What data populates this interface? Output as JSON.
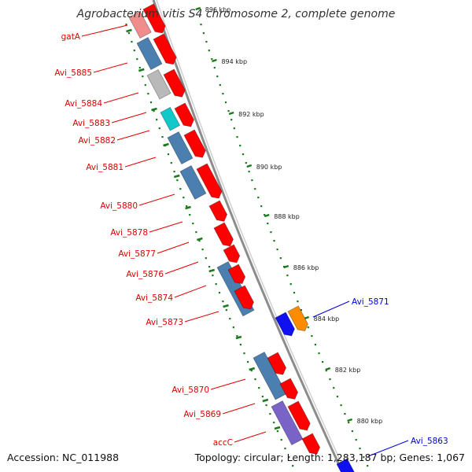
{
  "title": "Agrobacterium vitis S4 chromosome 2, complete genome",
  "accession": "Accession: NC_011988",
  "summary": "Topology: circular; Length: 1,283,187 bp; Genes: 1,067",
  "colors": {
    "forward_strand": "#ff0000",
    "reverse_cds": "#4a7fb0",
    "reverse_gray": "#b9b9b9",
    "reverse_cyan": "#12c8c8",
    "reverse_purple": "#7a63c6",
    "reverse_pink": "#f08c8c",
    "blue_feature": "#1010f0",
    "orange_feature": "#ff8c00",
    "red_label": "#e00000",
    "blue_label": "#0000dd",
    "tick_green": "#1a7a1a",
    "backbone": "#8c8c8c"
  },
  "gene_labels": [
    {
      "text": "gatA",
      "color": "red"
    },
    {
      "text": "Avi_5885",
      "color": "red"
    },
    {
      "text": "Avi_5884",
      "color": "red"
    },
    {
      "text": "Avi_5883",
      "color": "red"
    },
    {
      "text": "Avi_5882",
      "color": "red"
    },
    {
      "text": "Avi_5881",
      "color": "red"
    },
    {
      "text": "Avi_5880",
      "color": "red"
    },
    {
      "text": "Avi_5878",
      "color": "red"
    },
    {
      "text": "Avi_5877",
      "color": "red"
    },
    {
      "text": "Avi_5876",
      "color": "red"
    },
    {
      "text": "Avi_5874",
      "color": "red"
    },
    {
      "text": "Avi_5873",
      "color": "red"
    },
    {
      "text": "Avi_5870",
      "color": "red"
    },
    {
      "text": "Avi_5869",
      "color": "red"
    },
    {
      "text": "accC",
      "color": "red"
    },
    {
      "text": "Avi_5871",
      "color": "blue"
    },
    {
      "text": "Avi_5863",
      "color": "blue"
    }
  ],
  "kbp_ticks": [
    "896 kbp",
    "894 kbp",
    "892 kbp",
    "890 kbp",
    "888 kbp",
    "886 kbp",
    "884 kbp",
    "882 kbp",
    "880 kbp"
  ]
}
